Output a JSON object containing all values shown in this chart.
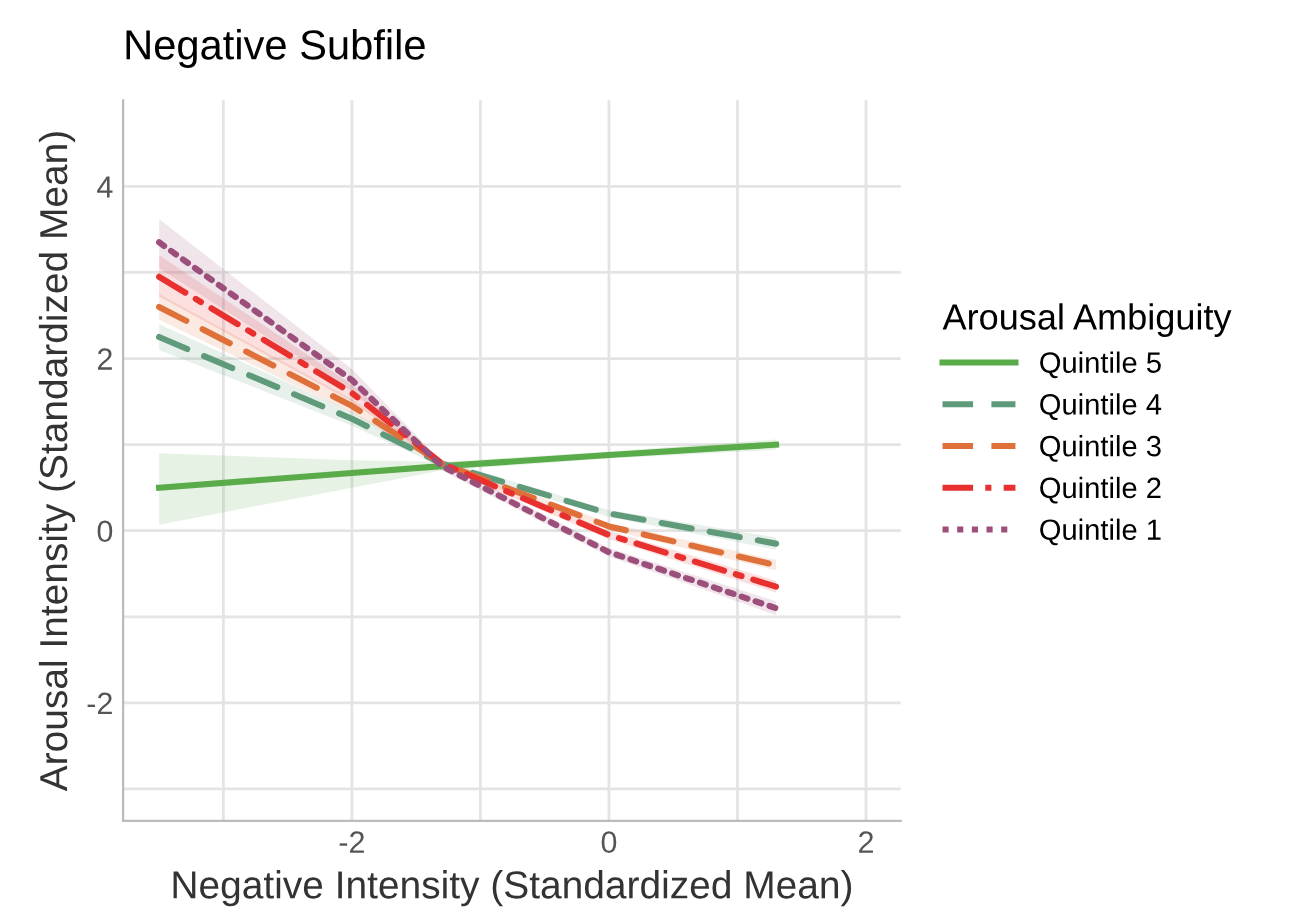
{
  "chart_data": {
    "type": "line",
    "title": "Negative Subfile",
    "xlabel": "Negative Intensity (Standardized Mean)",
    "ylabel": "Arousal Intensity (Standardized Mean)",
    "legend_title": "Arousal Ambiguity",
    "xlim": [
      -3.78,
      2.27
    ],
    "ylim": [
      -3.37,
      5.0
    ],
    "xticks": [
      {
        "value": -3,
        "label": null
      },
      -2,
      {
        "value": -1,
        "label": null
      },
      0,
      {
        "value": 1,
        "label": null
      },
      2
    ],
    "yticks": [
      {
        "value": -3,
        "label": null
      },
      -2,
      {
        "value": -1,
        "label": null
      },
      0,
      {
        "value": 1,
        "label": null
      },
      2,
      {
        "value": 3,
        "label": null
      },
      4
    ],
    "grid": true,
    "legend": "right",
    "marker": "none",
    "series": [
      {
        "name": "Quintile 5",
        "color": "#5aab4a",
        "line_style": "solid",
        "x": [
          -3.5,
          -2,
          -1.3,
          0,
          1.3
        ],
        "values": [
          0.5,
          0.67,
          0.75,
          0.88,
          1.0
        ],
        "lower": [
          0.07,
          0.5,
          0.7,
          0.84,
          0.94
        ],
        "upper": [
          0.9,
          0.82,
          0.8,
          0.92,
          1.06
        ]
      },
      {
        "name": "Quintile 4",
        "color": "#5f9a7a",
        "line_style": "dashed",
        "x": [
          -3.5,
          -2,
          -1.3,
          0,
          1.3
        ],
        "values": [
          2.25,
          1.3,
          0.78,
          0.2,
          -0.15
        ],
        "lower": [
          2.1,
          1.22,
          0.74,
          0.16,
          -0.22
        ],
        "upper": [
          2.4,
          1.38,
          0.82,
          0.24,
          -0.08
        ]
      },
      {
        "name": "Quintile 3",
        "color": "#e0703a",
        "line_style": "dashed",
        "x": [
          -3.5,
          -2,
          -1.3,
          0,
          1.3
        ],
        "values": [
          2.6,
          1.45,
          0.78,
          0.05,
          -0.4
        ],
        "lower": [
          2.45,
          1.37,
          0.74,
          0.01,
          -0.46
        ],
        "upper": [
          2.75,
          1.53,
          0.82,
          0.09,
          -0.34
        ]
      },
      {
        "name": "Quintile 2",
        "color": "#e8312f",
        "line_style": "dashdot",
        "x": [
          -3.5,
          -2,
          -1.3,
          0,
          1.3
        ],
        "values": [
          2.95,
          1.6,
          0.78,
          -0.05,
          -0.65
        ],
        "lower": [
          2.72,
          1.5,
          0.74,
          -0.1,
          -0.72
        ],
        "upper": [
          3.2,
          1.7,
          0.82,
          0.0,
          -0.58
        ]
      },
      {
        "name": "Quintile 1",
        "color": "#9b4f7a",
        "line_style": "dotted",
        "x": [
          -3.5,
          -2,
          -1.3,
          0,
          1.3
        ],
        "values": [
          3.35,
          1.75,
          0.75,
          -0.25,
          -0.9
        ],
        "lower": [
          3.05,
          1.62,
          0.7,
          -0.3,
          -0.98
        ],
        "upper": [
          3.62,
          1.88,
          0.8,
          -0.2,
          -0.82
        ]
      }
    ]
  }
}
